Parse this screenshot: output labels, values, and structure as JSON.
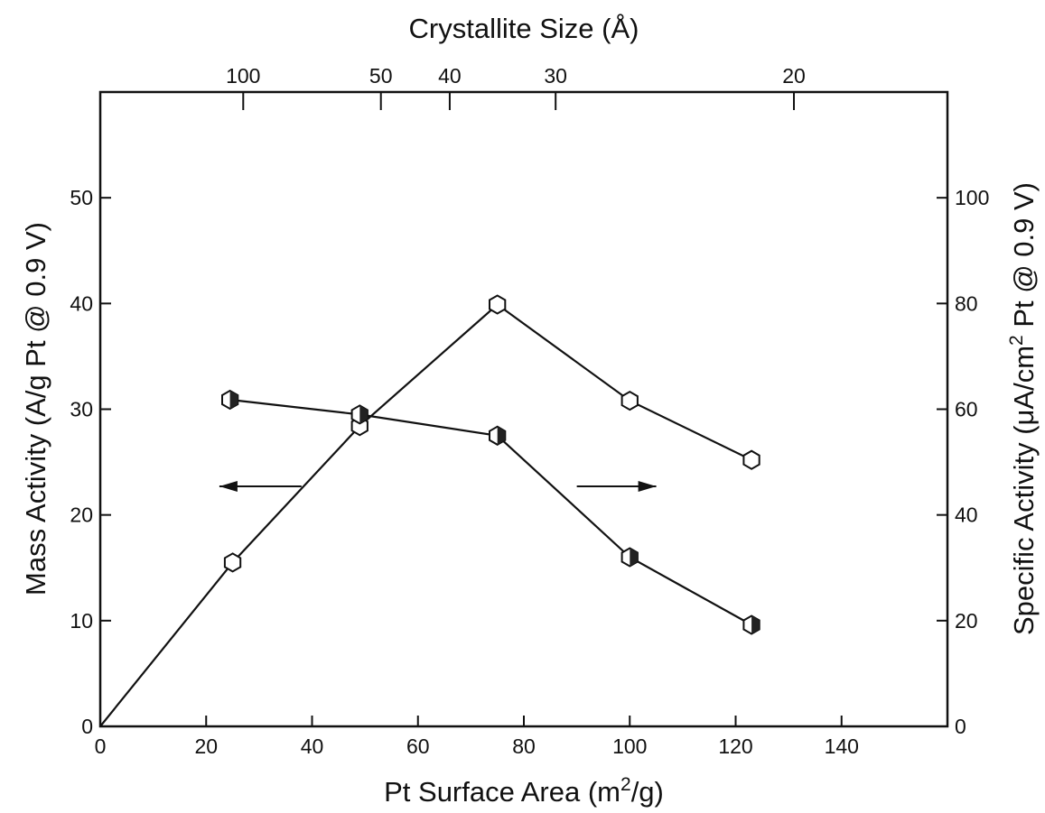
{
  "chart_data": {
    "type": "line",
    "title": "",
    "xlabel": "Pt Surface Area (m²/g)",
    "xlabel_parts": {
      "main": "Pt Surface Area (m",
      "sup": "2",
      "tail": "/g)"
    },
    "ylabel_left": "Mass Activity (A/g Pt @ 0.9 V)",
    "ylabel_right": "Specific Activity (μA/cm² Pt @ 0.9 V)",
    "ylabel_right_parts": {
      "main": "Specific Activity (μA/cm",
      "sup": "2",
      "tail": " Pt @ 0.9 V)"
    },
    "xlabel_top": "Crystallite Size (Å)",
    "xlim": [
      0,
      160
    ],
    "ylim_left": [
      0,
      60
    ],
    "ylim_right": [
      0,
      120
    ],
    "x_ticks": [
      "0",
      "20",
      "40",
      "60",
      "80",
      "100",
      "120",
      "140"
    ],
    "y_left_ticks": [
      "0",
      "10",
      "20",
      "30",
      "40",
      "50"
    ],
    "y_right_ticks": [
      "0",
      "20",
      "40",
      "60",
      "80",
      "100"
    ],
    "top_ticks": [
      {
        "label": "100",
        "surface_area": 27
      },
      {
        "label": "50",
        "surface_area": 53
      },
      {
        "label": "40",
        "surface_area": 66
      },
      {
        "label": "30",
        "surface_area": 86
      },
      {
        "label": "20",
        "surface_area": 131
      }
    ],
    "series": [
      {
        "axis": "left",
        "marker": "open-hexagon",
        "x": [
          0,
          25,
          49,
          75,
          100,
          123
        ],
        "y": [
          0,
          15.5,
          28.4,
          39.9,
          30.8,
          25.2
        ]
      },
      {
        "axis": "right",
        "marker": "half-filled-hexagon",
        "x": [
          24.5,
          49,
          75,
          100,
          123
        ],
        "y": [
          61.8,
          59.0,
          55.0,
          32.0,
          19.2
        ]
      }
    ],
    "annotations": [
      {
        "type": "arrow",
        "direction": "left",
        "points_to_axis": "left",
        "x_from": 38,
        "x_to": 22.5,
        "y_left": 22.7
      },
      {
        "type": "arrow",
        "direction": "right",
        "points_to_axis": "right",
        "x_from": 90,
        "x_to": 105,
        "y_left": 22.7
      }
    ]
  }
}
